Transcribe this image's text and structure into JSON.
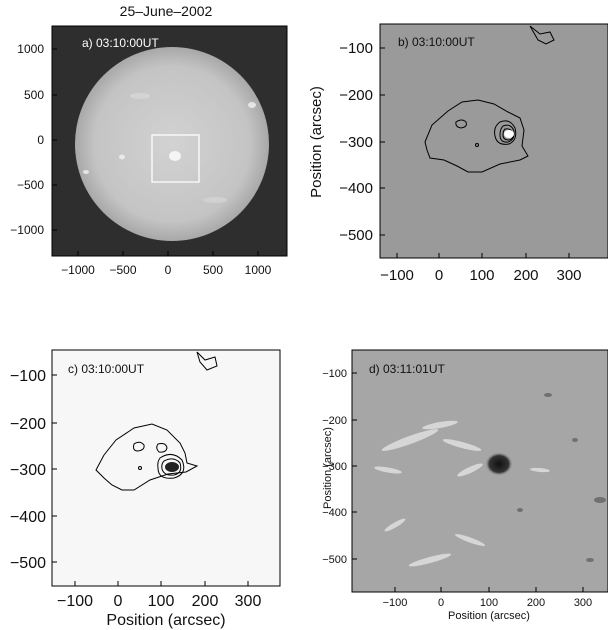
{
  "figure_title": "25–June–2002",
  "panels": [
    {
      "id": "a",
      "label": "a)  03:10:00UT",
      "x_ticks": [
        "−1000",
        "−500",
        "0",
        "500",
        "1000"
      ],
      "y_ticks": [
        "1000",
        "500",
        "0",
        "−500",
        "−1000"
      ]
    },
    {
      "id": "b",
      "label": "b) 03:10:00UT",
      "x_ticks": [
        "−100",
        "0",
        "100",
        "200",
        "300"
      ],
      "y_ticks": [
        "−100",
        "−200",
        "−300",
        "−400",
        "−500"
      ],
      "ylabel": "Position (arcsec)"
    },
    {
      "id": "c",
      "label": "c) 03:10:00UT",
      "x_ticks": [
        "−100",
        "0",
        "100",
        "200",
        "300"
      ],
      "y_ticks": [
        "−100",
        "−200",
        "−300",
        "−400",
        "−500"
      ],
      "xlabel": "Position (arcsec)"
    },
    {
      "id": "d",
      "label": "d) 03:11:01UT",
      "x_ticks": [
        "−100",
        "0",
        "100",
        "200",
        "300"
      ],
      "y_ticks": [
        "−100",
        "−200",
        "−300",
        "−400",
        "−500"
      ],
      "xlabel": "Position (arcsec)",
      "ylabel": "Position (arcsec)"
    }
  ],
  "colors": {
    "panel_a_background": "#2e2e2e",
    "solar_disk": "#c9c9c9",
    "panel_b_background": "#9a9a9a",
    "panel_c_background": "#f7f7f7",
    "panel_d_background": "#a6a6a6",
    "contour": "#000000"
  }
}
